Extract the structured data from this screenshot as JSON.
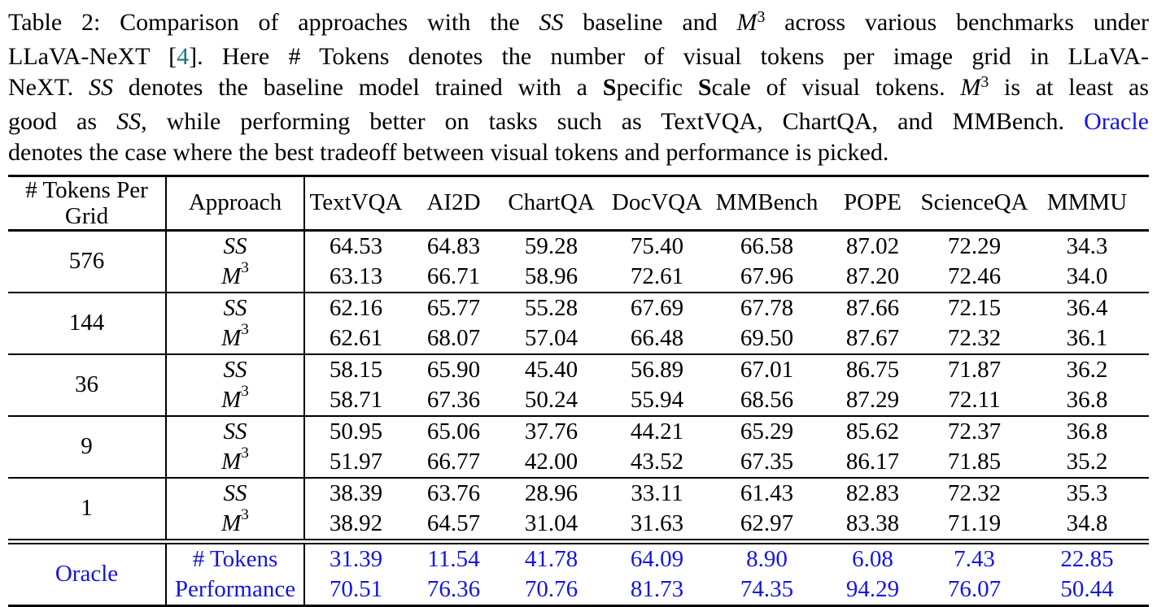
{
  "caption": {
    "lines": [
      [
        {
          "t": "Table 2: Comparison of approaches with the ",
          "s": "n"
        },
        {
          "t": "SS",
          "s": "i"
        },
        {
          "t": " baseline and ",
          "s": "n"
        },
        {
          "t": "M",
          "s": "i"
        },
        {
          "t": "3",
          "s": "sup"
        },
        {
          "t": " across various benchmarks under",
          "s": "n"
        }
      ],
      [
        {
          "t": "LLaVA-NeXT [",
          "s": "n"
        },
        {
          "t": "4",
          "s": "cite"
        },
        {
          "t": "]. Here # Tokens denotes the number of visual tokens per image grid in LLaVA-",
          "s": "n"
        }
      ],
      [
        {
          "t": "NeXT. ",
          "s": "n"
        },
        {
          "t": "SS",
          "s": "i"
        },
        {
          "t": " denotes the baseline model trained with a ",
          "s": "n"
        },
        {
          "t": "S",
          "s": "b"
        },
        {
          "t": "pecific ",
          "s": "n"
        },
        {
          "t": "S",
          "s": "b"
        },
        {
          "t": "cale of visual tokens. ",
          "s": "n"
        },
        {
          "t": "M",
          "s": "i"
        },
        {
          "t": "3",
          "s": "sup"
        },
        {
          "t": " is at least as",
          "s": "n"
        }
      ],
      [
        {
          "t": "good as ",
          "s": "n"
        },
        {
          "t": "SS",
          "s": "i"
        },
        {
          "t": ", while performing better on tasks such as TextVQA, ChartQA, and MMBench. ",
          "s": "n"
        },
        {
          "t": "Oracle",
          "s": "link"
        }
      ],
      [
        {
          "t": "denotes the case where the best tradeoff between visual tokens and performance is picked.",
          "s": "n"
        }
      ]
    ]
  },
  "table": {
    "header": {
      "col1_line1": "# Tokens Per",
      "col1_line2": "Grid",
      "col2": "Approach",
      "benchmarks": [
        "TextVQA",
        "AI2D",
        "ChartQA",
        "DocVQA",
        "MMBench",
        "POPE",
        "ScienceQA",
        "MMMU"
      ]
    },
    "groups": [
      {
        "tokens": "576",
        "rows": [
          {
            "approach": "SS",
            "italic": true,
            "values": [
              "64.53",
              "64.83",
              "59.28",
              "75.40",
              "66.58",
              "87.02",
              "72.29",
              "34.3"
            ]
          },
          {
            "approach": "M^3",
            "italic": true,
            "values": [
              "63.13",
              "66.71",
              "58.96",
              "72.61",
              "67.96",
              "87.20",
              "72.46",
              "34.0"
            ]
          }
        ]
      },
      {
        "tokens": "144",
        "rows": [
          {
            "approach": "SS",
            "italic": true,
            "values": [
              "62.16",
              "65.77",
              "55.28",
              "67.69",
              "67.78",
              "87.66",
              "72.15",
              "36.4"
            ]
          },
          {
            "approach": "M^3",
            "italic": true,
            "values": [
              "62.61",
              "68.07",
              "57.04",
              "66.48",
              "69.50",
              "87.67",
              "72.32",
              "36.1"
            ]
          }
        ]
      },
      {
        "tokens": "36",
        "rows": [
          {
            "approach": "SS",
            "italic": true,
            "values": [
              "58.15",
              "65.90",
              "45.40",
              "56.89",
              "67.01",
              "86.75",
              "71.87",
              "36.2"
            ]
          },
          {
            "approach": "M^3",
            "italic": true,
            "values": [
              "58.71",
              "67.36",
              "50.24",
              "55.94",
              "68.56",
              "87.29",
              "72.11",
              "36.8"
            ]
          }
        ]
      },
      {
        "tokens": "9",
        "rows": [
          {
            "approach": "SS",
            "italic": true,
            "values": [
              "50.95",
              "65.06",
              "37.76",
              "44.21",
              "65.29",
              "85.62",
              "72.37",
              "36.8"
            ]
          },
          {
            "approach": "M^3",
            "italic": true,
            "values": [
              "51.97",
              "66.77",
              "42.00",
              "43.52",
              "67.35",
              "86.17",
              "71.85",
              "35.2"
            ]
          }
        ]
      },
      {
        "tokens": "1",
        "rows": [
          {
            "approach": "SS",
            "italic": true,
            "values": [
              "38.39",
              "63.76",
              "28.96",
              "33.11",
              "61.43",
              "82.83",
              "72.32",
              "35.3"
            ]
          },
          {
            "approach": "M^3",
            "italic": true,
            "values": [
              "38.92",
              "64.57",
              "31.04",
              "31.63",
              "62.97",
              "83.38",
              "71.19",
              "34.8"
            ]
          }
        ]
      }
    ],
    "oracle": {
      "label": "Oracle",
      "rows": [
        {
          "approach": "# Tokens",
          "italic": false,
          "values": [
            "31.39",
            "11.54",
            "41.78",
            "64.09",
            "8.90",
            "6.08",
            "7.43",
            "22.85"
          ]
        },
        {
          "approach": "Performance",
          "italic": false,
          "values": [
            "70.51",
            "76.36",
            "70.76",
            "81.73",
            "74.35",
            "94.29",
            "76.07",
            "50.44"
          ]
        }
      ]
    }
  },
  "colors": {
    "oracle_blue": "#1414e8",
    "citation_teal": "#177a7a",
    "rule_black": "#000000"
  }
}
